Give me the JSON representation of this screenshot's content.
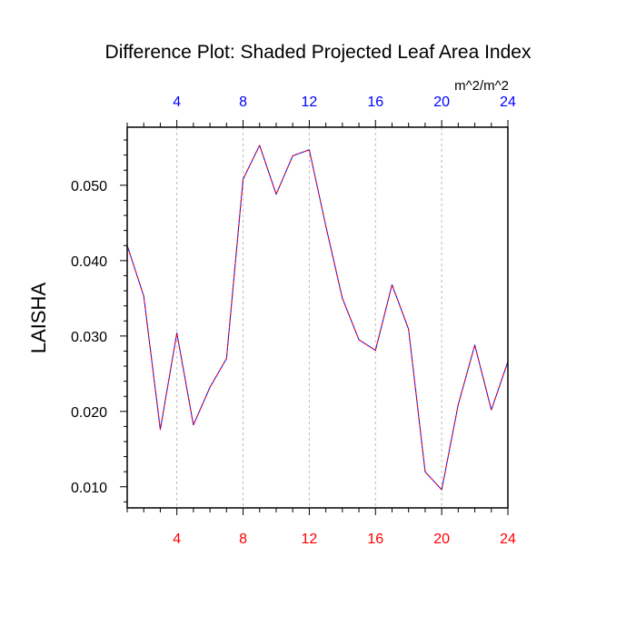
{
  "chart_data": {
    "type": "line",
    "title": "Difference Plot: Shaded Projected Leaf Area Index",
    "ylabel": "LAISHA",
    "units": "m^2/m^2",
    "xlim": [
      1,
      24
    ],
    "ylim": [
      0.0072,
      0.0577
    ],
    "x_ticks": [
      4,
      8,
      12,
      16,
      20,
      24
    ],
    "x_tick_labels": [
      "4",
      "8",
      "12",
      "16",
      "20",
      "24"
    ],
    "y_ticks": [
      0.01,
      0.02,
      0.03,
      0.04,
      0.05
    ],
    "y_tick_labels": [
      "0.010",
      "0.020",
      "0.030",
      "0.040",
      "0.050"
    ],
    "grid": "vertical dashed at major x ticks",
    "colors": {
      "top_axis_labels": "#0000ff",
      "bottom_axis_labels": "#ff0000",
      "series_a": "#0000ff",
      "series_b": "#ff0000",
      "grid": "#bbbbbb",
      "axes": "#000000"
    },
    "x": [
      1,
      2,
      3,
      4,
      5,
      6,
      7,
      8,
      9,
      10,
      11,
      12,
      13,
      14,
      15,
      16,
      17,
      18,
      19,
      20,
      21,
      22,
      23,
      24
    ],
    "series": [
      {
        "name": "blue",
        "values": [
          0.042,
          0.0353,
          0.0176,
          0.0304,
          0.0182,
          0.0232,
          0.027,
          0.0508,
          0.0553,
          0.0488,
          0.0539,
          0.0547,
          0.0446,
          0.035,
          0.0295,
          0.0281,
          0.0368,
          0.0309,
          0.012,
          0.0096,
          0.0209,
          0.0288,
          0.0202,
          0.0266
        ]
      },
      {
        "name": "red",
        "values": [
          0.042,
          0.0353,
          0.0176,
          0.0304,
          0.0182,
          0.0232,
          0.027,
          0.0508,
          0.0553,
          0.0488,
          0.0539,
          0.0547,
          0.0446,
          0.035,
          0.0295,
          0.0281,
          0.0368,
          0.0309,
          0.012,
          0.0096,
          0.0209,
          0.0288,
          0.0202,
          0.0266
        ]
      }
    ]
  }
}
